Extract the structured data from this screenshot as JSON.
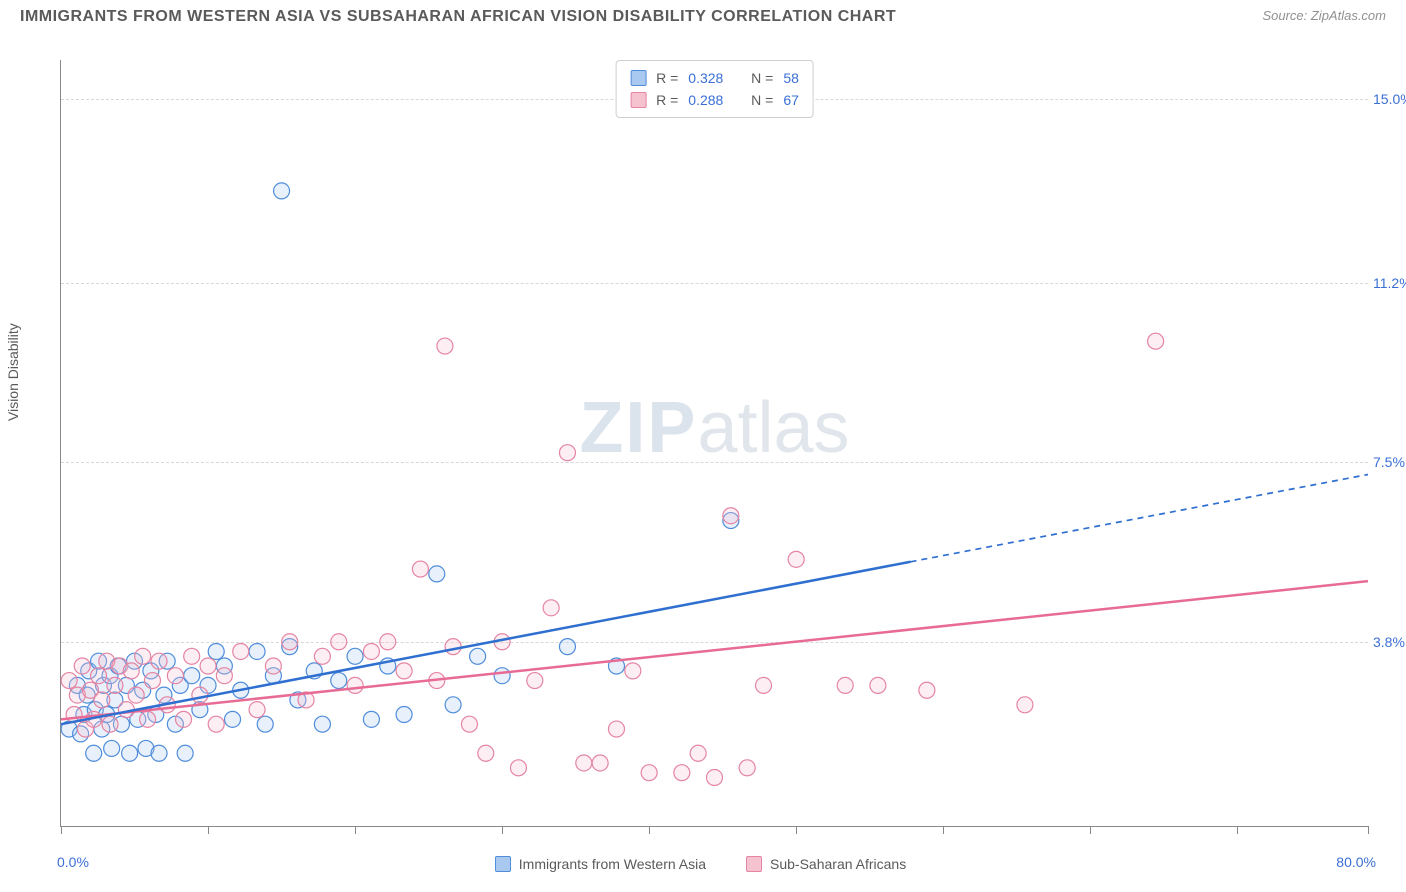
{
  "title": "IMMIGRANTS FROM WESTERN ASIA VS SUBSAHARAN AFRICAN VISION DISABILITY CORRELATION CHART",
  "source_prefix": "Source: ",
  "source_name": "ZipAtlas.com",
  "y_axis_label": "Vision Disability",
  "watermark_a": "ZIP",
  "watermark_b": "atlas",
  "chart": {
    "type": "scatter",
    "background_color": "#ffffff",
    "grid_color": "#d8d8d8",
    "axis_color": "#888888",
    "label_color_axis": "#5a5a5a",
    "label_color_ticks": "#3b6fd6",
    "x_min": 0.0,
    "x_max": 80.0,
    "x_min_label": "0.0%",
    "x_max_label": "80.0%",
    "x_ticks": [
      0,
      9,
      18,
      27,
      36,
      45,
      54,
      63,
      72,
      80
    ],
    "y_min": 0.0,
    "y_max": 15.8,
    "y_grid": [
      {
        "v": 3.8,
        "label": "3.8%"
      },
      {
        "v": 7.5,
        "label": "7.5%"
      },
      {
        "v": 11.2,
        "label": "11.2%"
      },
      {
        "v": 15.0,
        "label": "15.0%"
      }
    ],
    "marker_radius": 8,
    "marker_fill_opacity": 0.28,
    "marker_stroke_width": 1.2,
    "trend_line_width": 2.5,
    "series": [
      {
        "id": "western_asia",
        "label": "Immigrants from Western Asia",
        "fill": "#a9c9f0",
        "stroke": "#4f8ddb",
        "line_color": "#2f6fd0",
        "r_label": "R =",
        "r_value": "0.328",
        "n_label": "N =",
        "n_value": "58",
        "trend": {
          "x1": 0,
          "y1": 2.1,
          "x2_solid": 52,
          "y2_solid": 5.45,
          "x2_dash": 80,
          "y2_dash": 7.25
        },
        "points": [
          [
            0.5,
            2.0
          ],
          [
            1.0,
            2.9
          ],
          [
            1.2,
            1.9
          ],
          [
            1.4,
            2.3
          ],
          [
            1.6,
            2.7
          ],
          [
            1.7,
            3.2
          ],
          [
            2.0,
            1.5
          ],
          [
            2.1,
            2.4
          ],
          [
            2.3,
            3.4
          ],
          [
            2.5,
            2.0
          ],
          [
            2.6,
            2.9
          ],
          [
            2.8,
            2.3
          ],
          [
            3.0,
            3.1
          ],
          [
            3.1,
            1.6
          ],
          [
            3.3,
            2.6
          ],
          [
            3.5,
            3.3
          ],
          [
            3.7,
            2.1
          ],
          [
            4.0,
            2.9
          ],
          [
            4.2,
            1.5
          ],
          [
            4.5,
            3.4
          ],
          [
            4.7,
            2.2
          ],
          [
            5.0,
            2.8
          ],
          [
            5.2,
            1.6
          ],
          [
            5.5,
            3.2
          ],
          [
            5.8,
            2.3
          ],
          [
            6.0,
            1.5
          ],
          [
            6.3,
            2.7
          ],
          [
            6.5,
            3.4
          ],
          [
            7.0,
            2.1
          ],
          [
            7.3,
            2.9
          ],
          [
            7.6,
            1.5
          ],
          [
            8.0,
            3.1
          ],
          [
            8.5,
            2.4
          ],
          [
            9.0,
            2.9
          ],
          [
            9.5,
            3.6
          ],
          [
            10.0,
            3.3
          ],
          [
            10.5,
            2.2
          ],
          [
            11.0,
            2.8
          ],
          [
            12.0,
            3.6
          ],
          [
            12.5,
            2.1
          ],
          [
            13.0,
            3.1
          ],
          [
            14.0,
            3.7
          ],
          [
            14.5,
            2.6
          ],
          [
            15.5,
            3.2
          ],
          [
            16.0,
            2.1
          ],
          [
            17.0,
            3.0
          ],
          [
            18.0,
            3.5
          ],
          [
            19.0,
            2.2
          ],
          [
            20.0,
            3.3
          ],
          [
            21.0,
            2.3
          ],
          [
            23.0,
            5.2
          ],
          [
            24.0,
            2.5
          ],
          [
            25.5,
            3.5
          ],
          [
            27.0,
            3.1
          ],
          [
            31.0,
            3.7
          ],
          [
            34.0,
            3.3
          ],
          [
            41.0,
            6.3
          ],
          [
            13.5,
            13.1
          ]
        ]
      },
      {
        "id": "subsaharan",
        "label": "Sub-Saharan Africans",
        "fill": "#f4c3cf",
        "stroke": "#e584a3",
        "line_color": "#e76b95",
        "r_label": "R =",
        "r_value": "0.288",
        "n_label": "N =",
        "n_value": "67",
        "trend": {
          "x1": 0,
          "y1": 2.2,
          "x2_solid": 80,
          "y2_solid": 5.05,
          "x2_dash": 80,
          "y2_dash": 5.05
        },
        "points": [
          [
            0.5,
            3.0
          ],
          [
            0.8,
            2.3
          ],
          [
            1.0,
            2.7
          ],
          [
            1.3,
            3.3
          ],
          [
            1.5,
            2.0
          ],
          [
            1.8,
            2.8
          ],
          [
            2.0,
            2.2
          ],
          [
            2.3,
            3.1
          ],
          [
            2.5,
            2.6
          ],
          [
            2.8,
            3.4
          ],
          [
            3.0,
            2.1
          ],
          [
            3.3,
            2.9
          ],
          [
            3.6,
            3.3
          ],
          [
            4.0,
            2.4
          ],
          [
            4.3,
            3.2
          ],
          [
            4.6,
            2.7
          ],
          [
            5.0,
            3.5
          ],
          [
            5.3,
            2.2
          ],
          [
            5.6,
            3.0
          ],
          [
            6.0,
            3.4
          ],
          [
            6.5,
            2.5
          ],
          [
            7.0,
            3.1
          ],
          [
            7.5,
            2.2
          ],
          [
            8.0,
            3.5
          ],
          [
            8.5,
            2.7
          ],
          [
            9.0,
            3.3
          ],
          [
            9.5,
            2.1
          ],
          [
            10.0,
            3.1
          ],
          [
            11.0,
            3.6
          ],
          [
            12.0,
            2.4
          ],
          [
            13.0,
            3.3
          ],
          [
            14.0,
            3.8
          ],
          [
            15.0,
            2.6
          ],
          [
            16.0,
            3.5
          ],
          [
            17.0,
            3.8
          ],
          [
            18.0,
            2.9
          ],
          [
            19.0,
            3.6
          ],
          [
            20.0,
            3.8
          ],
          [
            21.0,
            3.2
          ],
          [
            22.0,
            5.3
          ],
          [
            23.0,
            3.0
          ],
          [
            24.0,
            3.7
          ],
          [
            25.0,
            2.1
          ],
          [
            26.0,
            1.5
          ],
          [
            27.0,
            3.8
          ],
          [
            28.0,
            1.2
          ],
          [
            29.0,
            3.0
          ],
          [
            30.0,
            4.5
          ],
          [
            31.0,
            7.7
          ],
          [
            32.0,
            1.3
          ],
          [
            33.0,
            1.3
          ],
          [
            34.0,
            2.0
          ],
          [
            35.0,
            3.2
          ],
          [
            36.0,
            1.1
          ],
          [
            38.0,
            1.1
          ],
          [
            39.0,
            1.5
          ],
          [
            40.0,
            1.0
          ],
          [
            41.0,
            6.4
          ],
          [
            42.0,
            1.2
          ],
          [
            43.0,
            2.9
          ],
          [
            45.0,
            5.5
          ],
          [
            48.0,
            2.9
          ],
          [
            50.0,
            2.9
          ],
          [
            53.0,
            2.8
          ],
          [
            59.0,
            2.5
          ],
          [
            67.0,
            10.0
          ],
          [
            23.5,
            9.9
          ]
        ]
      }
    ]
  }
}
